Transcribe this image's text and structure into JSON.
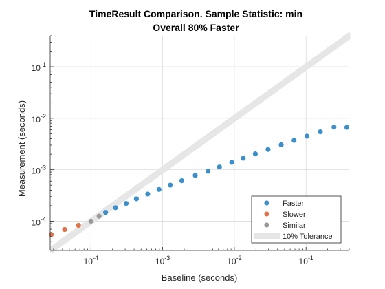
{
  "chart_data": {
    "type": "scatter",
    "title": "TimeResult Comparison. Sample Statistic: min",
    "subtitle": "Overall 80% Faster",
    "xlabel": "Baseline (seconds)",
    "ylabel": "Measurement (seconds)",
    "xscale": "log",
    "yscale": "log",
    "xlim": [
      2.7e-05,
      0.4
    ],
    "ylim": [
      2.7e-05,
      0.4
    ],
    "grid": true,
    "legend_position": "bottom-right",
    "x_ticks": [
      {
        "value": 0.0001,
        "base": "10",
        "exp": "-4"
      },
      {
        "value": 0.001,
        "base": "10",
        "exp": "-3"
      },
      {
        "value": 0.01,
        "base": "10",
        "exp": "-2"
      },
      {
        "value": 0.1,
        "base": "10",
        "exp": "-1"
      }
    ],
    "y_ticks": [
      {
        "value": 0.0001,
        "base": "10",
        "exp": "-4"
      },
      {
        "value": 0.001,
        "base": "10",
        "exp": "-3"
      },
      {
        "value": 0.01,
        "base": "10",
        "exp": "-2"
      },
      {
        "value": 0.1,
        "base": "10",
        "exp": "-1"
      }
    ],
    "series": [
      {
        "name": "Faster",
        "color": "#3a8fcd",
        "x": [
          0.00016,
          0.00022,
          0.00031,
          0.00043,
          0.00062,
          0.00089,
          0.00128,
          0.00185,
          0.00285,
          0.0043,
          0.0062,
          0.0092,
          0.0133,
          0.0196,
          0.0295,
          0.045,
          0.068,
          0.103,
          0.158,
          0.245,
          0.37
        ],
        "y": [
          0.000148,
          0.000183,
          0.000222,
          0.000272,
          0.000337,
          0.000413,
          0.000502,
          0.000612,
          0.000775,
          0.00093,
          0.00113,
          0.00139,
          0.00167,
          0.00203,
          0.00248,
          0.00305,
          0.00371,
          0.00448,
          0.00545,
          0.00675,
          0.00667
        ]
      },
      {
        "name": "Slower",
        "color": "#e0734a",
        "x": [
          2.8e-05,
          4.3e-05,
          6.7e-05
        ],
        "y": [
          5.5e-05,
          6.9e-05,
          8.3e-05
        ]
      },
      {
        "name": "Similar",
        "color": "#999999",
        "x": [
          0.0001,
          0.00013
        ],
        "y": [
          0.0001,
          0.000125
        ]
      }
    ],
    "tolerance": {
      "name": "10% Tolerance",
      "color": "#e6e6e6",
      "fraction": 0.1
    }
  }
}
